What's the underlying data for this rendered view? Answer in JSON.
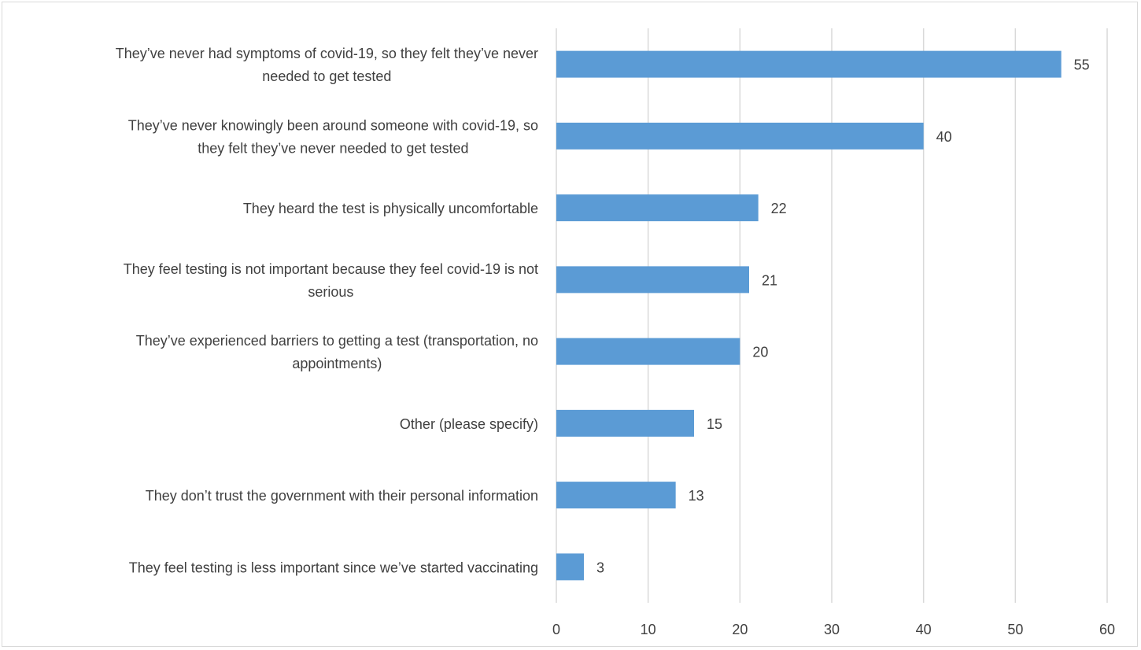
{
  "chart_data": {
    "type": "bar",
    "orientation": "horizontal",
    "title": "",
    "xlabel": "",
    "ylabel": "",
    "categories": [
      [
        "They’ve never had symptoms of covid-19, so they felt they’ve never",
        "needed to get tested"
      ],
      [
        "They’ve never knowingly been around someone with covid-19,  so",
        "they felt they’ve never needed to get tested"
      ],
      [
        "They heard the test is physically uncomfortable"
      ],
      [
        "They feel testing is not important because they feel covid-19 is not",
        "serious"
      ],
      [
        "They’ve experienced barriers to getting a test (transportation, no",
        "appointments)"
      ],
      [
        "Other (please specify)"
      ],
      [
        "They don’t trust the government with their personal information"
      ],
      [
        "They feel testing is less important since we’ve started vaccinating"
      ]
    ],
    "values": [
      55,
      40,
      22,
      21,
      20,
      15,
      13,
      3
    ],
    "data_labels": [
      "55",
      "40",
      "22",
      "21",
      "20",
      "15",
      "13",
      "3"
    ],
    "xlim": [
      0,
      60
    ],
    "ticks": [
      "0",
      "10",
      "20",
      "30",
      "40",
      "50",
      "60"
    ],
    "tick_values": [
      0,
      10,
      20,
      30,
      40,
      50,
      60
    ],
    "grid": "vertical",
    "legend": "none",
    "bar_color": "#5b9bd5",
    "grid_color": "#d9d9d9"
  }
}
